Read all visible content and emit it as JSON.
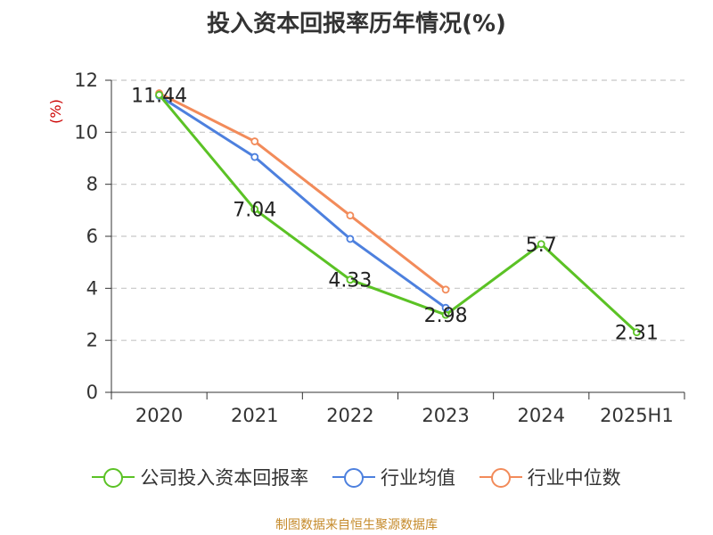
{
  "title": "投入资本回报率历年情况(%)",
  "source_text": "制图数据来自恒生聚源数据库",
  "chart_data": {
    "type": "line",
    "title": "投入资本回报率历年情况(%)",
    "ylabel": "(%)",
    "xlabel": "",
    "categories": [
      "2020",
      "2021",
      "2022",
      "2023",
      "2024",
      "2025H1"
    ],
    "ylim": [
      0,
      12
    ],
    "yticks": [
      0,
      2,
      4,
      6,
      8,
      10,
      12
    ],
    "grid": true,
    "legend_position": "bottom",
    "series": [
      {
        "name": "公司投入资本回报率",
        "color": "#5bc225",
        "values": [
          11.44,
          7.04,
          4.33,
          2.98,
          5.7,
          2.31
        ],
        "labels": [
          "11.44",
          "7.04",
          "4.33",
          "2.98",
          "5.7",
          "2.31"
        ]
      },
      {
        "name": "行业均值",
        "color": "#4d80de",
        "values": [
          11.4,
          9.05,
          5.9,
          3.25,
          null,
          null
        ],
        "labels": []
      },
      {
        "name": "行业中位数",
        "color": "#f28b5a",
        "values": [
          11.5,
          9.65,
          6.8,
          3.95,
          null,
          null
        ],
        "labels": []
      }
    ]
  }
}
